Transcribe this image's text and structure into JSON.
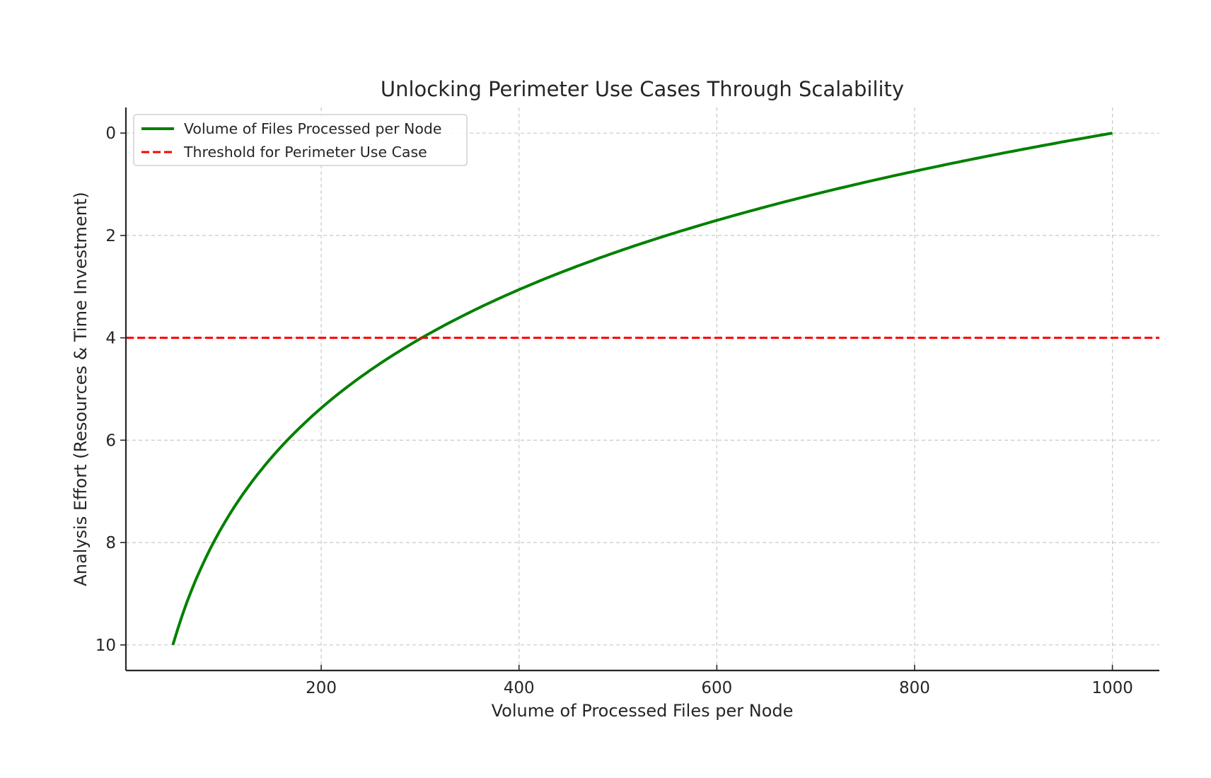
{
  "chart_data": {
    "type": "line",
    "title": "Unlocking Perimeter Use Cases Through Scalability",
    "xlabel": "Volume of Processed Files per Node",
    "ylabel": "Analysis Effort (Resources & Time Investment)",
    "xlim": [
      2.5,
      1047.5
    ],
    "ylim": [
      10.5,
      -0.5
    ],
    "y_inverted": true,
    "xticks": [
      200,
      400,
      600,
      800,
      1000
    ],
    "yticks": [
      0,
      2,
      4,
      6,
      8,
      10
    ],
    "grid": true,
    "legend_position": "upper left",
    "series": [
      {
        "name": "Volume of Files Processed per Node",
        "color": "#008000",
        "style": "solid",
        "x": [
          50,
          60,
          75,
          100,
          125,
          150,
          175,
          200,
          250,
          300,
          350,
          400,
          450,
          500,
          550,
          600,
          650,
          700,
          750,
          800,
          850,
          900,
          950,
          1000
        ],
        "y": [
          10.0,
          9.39,
          8.65,
          7.69,
          6.94,
          6.33,
          5.82,
          5.37,
          4.63,
          4.02,
          3.5,
          3.06,
          2.67,
          2.31,
          2.0,
          1.71,
          1.44,
          1.19,
          0.96,
          0.74,
          0.54,
          0.35,
          0.17,
          0.0
        ]
      },
      {
        "name": "Threshold for Perimeter Use Case",
        "color": "#ff0000",
        "style": "dashed",
        "type": "hline",
        "y": 4
      }
    ]
  }
}
